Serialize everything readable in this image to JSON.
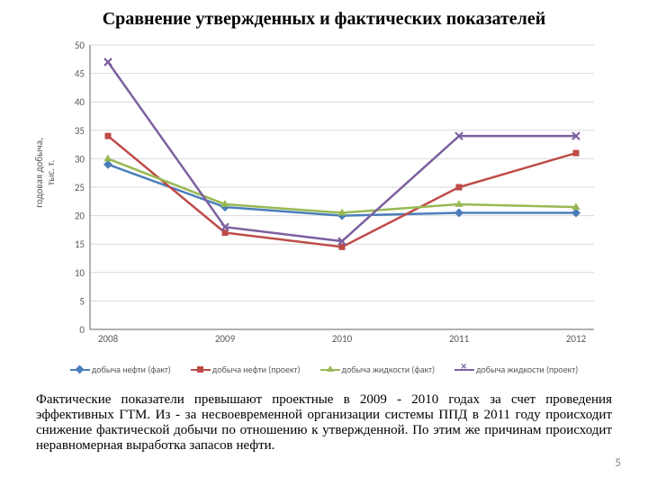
{
  "title": "Сравнение утвержденных и фактических показателей",
  "chart": {
    "type": "line",
    "background_color": "#ffffff",
    "grid_color": "#d9d9d9",
    "axis_color": "#808080",
    "tick_label_fontsize": 11,
    "tick_label_color": "#595959",
    "ylim": [
      0,
      50
    ],
    "ytick_step": 5,
    "ylabel": "годовая добыча,\nтыс. т.",
    "categories": [
      "2008",
      "2009",
      "2010",
      "2011",
      "2012"
    ],
    "series": [
      {
        "name": "добыча нефти (факт)",
        "color": "#4a7ebb",
        "marker": "diamond",
        "marker_size": 7,
        "line_width": 2.5,
        "values": [
          29,
          21.5,
          20,
          20.5,
          20.5
        ]
      },
      {
        "name": "добыча нефти (проект)",
        "color": "#be4b48",
        "marker": "square",
        "marker_size": 7,
        "line_width": 2.5,
        "values": [
          34,
          17,
          14.5,
          25,
          31
        ]
      },
      {
        "name": "добыча жидкости (факт)",
        "color": "#98b954",
        "marker": "triangle",
        "marker_size": 8,
        "line_width": 2.5,
        "values": [
          30,
          22,
          20.5,
          22,
          21.5
        ]
      },
      {
        "name": "добыча жидкости (проект)",
        "color": "#7d60a0",
        "marker": "x",
        "marker_size": 8,
        "line_width": 2.5,
        "values": [
          47,
          18,
          15.5,
          34,
          34
        ]
      }
    ]
  },
  "body_paragraph": "Фактические показатели превышают проектные в 2009 - 2010 годах за счет проведения эффективных ГТМ. Из - за несвоевременной организации системы ППД в 2011 году происходит снижение фактической добычи по отношению к утвержденной. По этим же причинам происходит неравномерная выработка запасов нефти.",
  "slide_number": "5"
}
